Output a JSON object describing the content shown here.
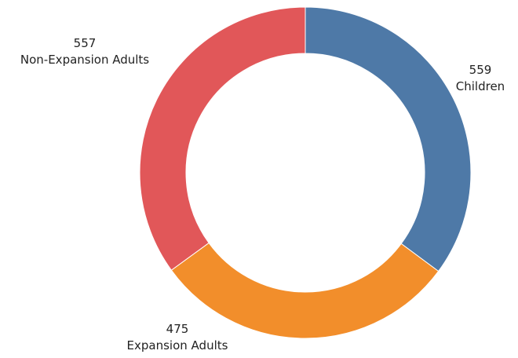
{
  "chart_data": {
    "type": "pie",
    "donut": true,
    "title": "",
    "slices": [
      {
        "label": "Children",
        "value": 559,
        "color": "#4e79a7"
      },
      {
        "label": "Expansion Adults",
        "value": 475,
        "color": "#f28e2b"
      },
      {
        "label": "Non-Expansion Adults",
        "value": 557,
        "color": "#e15759"
      }
    ],
    "start_angle_deg": 0,
    "direction": "clockwise",
    "legend": "none"
  }
}
